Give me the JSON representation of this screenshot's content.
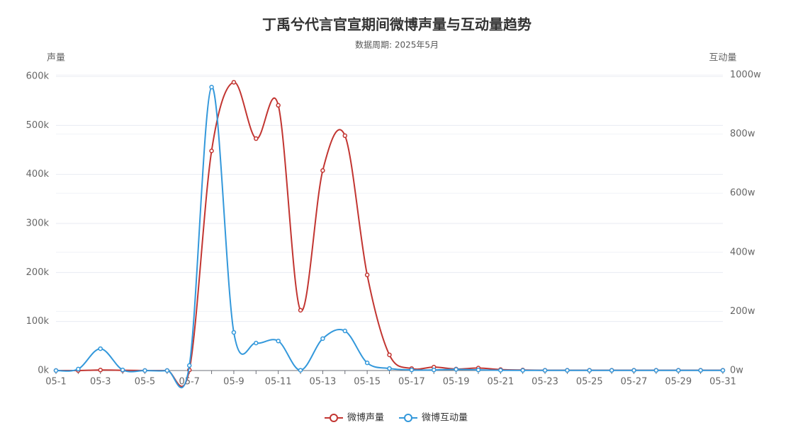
{
  "chart_data": {
    "type": "line",
    "title": "丁禹兮代言官宣期间微博声量与互动量趋势",
    "subtitle": "数据周期: 2025年5月",
    "y_label": "声量",
    "y2_label": "互动量",
    "categories": [
      "05-1",
      null,
      "05-3",
      null,
      "05-5",
      null,
      "05-7",
      null,
      "05-9",
      null,
      "05-11",
      null,
      "05-13",
      null,
      "05-15",
      null,
      "05-17",
      null,
      "05-19",
      null,
      "05-21",
      null,
      "05-23",
      null,
      "05-25",
      null,
      "05-27",
      null,
      "05-29",
      null,
      "05-31"
    ],
    "ylim": [
      0,
      600000
    ],
    "yticks": [
      {
        "value": 0,
        "label": "0k"
      },
      {
        "value": 100000,
        "label": "100k"
      },
      {
        "value": 200000,
        "label": "200k"
      },
      {
        "value": 300000,
        "label": "300k"
      },
      {
        "value": 400000,
        "label": "400k"
      },
      {
        "value": 500000,
        "label": "500k"
      },
      {
        "value": 600000,
        "label": "600k"
      }
    ],
    "y2lim": [
      0,
      10000000
    ],
    "y2ticks": [
      {
        "value": 0,
        "label": "0w"
      },
      {
        "value": 2000000,
        "label": "200w"
      },
      {
        "value": 4000000,
        "label": "400w"
      },
      {
        "value": 6000000,
        "label": "600w"
      },
      {
        "value": 8000000,
        "label": "800w"
      },
      {
        "value": 10000000,
        "label": "1000w"
      }
    ],
    "grid": true,
    "legend": "bottom",
    "series": [
      {
        "name": "微博声量",
        "color": "#c23531",
        "values": [
          0,
          0,
          1000,
          500,
          0,
          0,
          1000,
          448000,
          588000,
          473000,
          541000,
          123000,
          408000,
          479000,
          195000,
          32000,
          4000,
          7000,
          3000,
          5000,
          2000,
          1000,
          500,
          500,
          500,
          500,
          500,
          500,
          500,
          500,
          500
        ]
      },
      {
        "name": "微博互动量",
        "color": "#3398db",
        "axis": "y2",
        "values": [
          0,
          50000,
          740000,
          20000,
          0,
          0,
          170000,
          9590000,
          1290000,
          930000,
          1000000,
          10000,
          1080000,
          1340000,
          260000,
          70000,
          20000,
          20000,
          40000,
          20000,
          10000,
          5000,
          5000,
          5000,
          5000,
          5000,
          5000,
          5000,
          5000,
          5000,
          5000
        ]
      }
    ]
  }
}
